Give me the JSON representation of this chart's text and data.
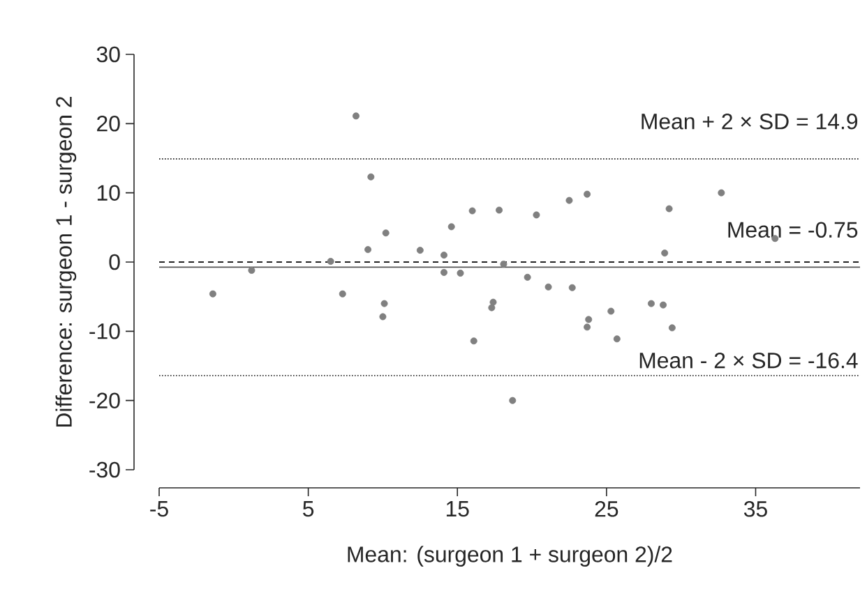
{
  "chart_data": {
    "type": "scatter",
    "xlabel": "Mean: (surgeon 1 + surgeon 2)/2",
    "ylabel": "Difference: surgeon 1 - surgeon 2",
    "xlim": [
      -5,
      42
    ],
    "ylim": [
      -30,
      30
    ],
    "xticks": [
      -5,
      5,
      15,
      25,
      35
    ],
    "yticks": [
      -30,
      -20,
      -10,
      0,
      10,
      20,
      30
    ],
    "series": [
      {
        "color": "#808080",
        "x": [
          -1.4,
          1.2,
          6.5,
          7.3,
          8.2,
          9.2,
          9.0,
          10.2,
          10.1,
          10.0,
          12.5,
          14.1,
          14.1,
          14.6,
          15.2,
          16.0,
          16.1,
          17.4,
          17.3,
          17.8,
          18.1,
          18.7,
          19.7,
          20.3,
          21.1,
          22.5,
          22.7,
          23.7,
          23.8,
          23.7,
          25.3,
          25.7,
          28.0,
          28.8,
          28.9,
          29.2,
          29.4,
          32.7,
          36.3
        ],
        "values": [
          -4.6,
          -1.2,
          0.1,
          -4.6,
          21.1,
          12.3,
          1.8,
          4.2,
          -6.0,
          -7.9,
          1.7,
          1.0,
          -1.5,
          5.1,
          -1.6,
          7.4,
          -11.4,
          -5.8,
          -6.6,
          7.5,
          -0.3,
          -20.0,
          -2.2,
          6.8,
          -3.6,
          8.9,
          -3.7,
          9.8,
          -8.3,
          -9.4,
          -7.1,
          -11.1,
          -6.0,
          -6.2,
          1.3,
          7.7,
          -9.5,
          10.0,
          3.4
        ]
      }
    ],
    "ref_lines": [
      {
        "axis": "y",
        "value": 14.9,
        "label": "Mean + 2 × SD = 14.9",
        "line_style": "dotted",
        "color": "#333333"
      },
      {
        "axis": "y",
        "value": -0.75,
        "label": "Mean = -0.75",
        "line_style": "solid",
        "color": "#555555"
      },
      {
        "axis": "y",
        "value": 0,
        "line_style": "dashed",
        "color": "#222222"
      },
      {
        "axis": "y",
        "value": -16.4,
        "label": "Mean - 2 × SD = -16.4",
        "line_style": "dotted",
        "color": "#333333"
      }
    ]
  }
}
